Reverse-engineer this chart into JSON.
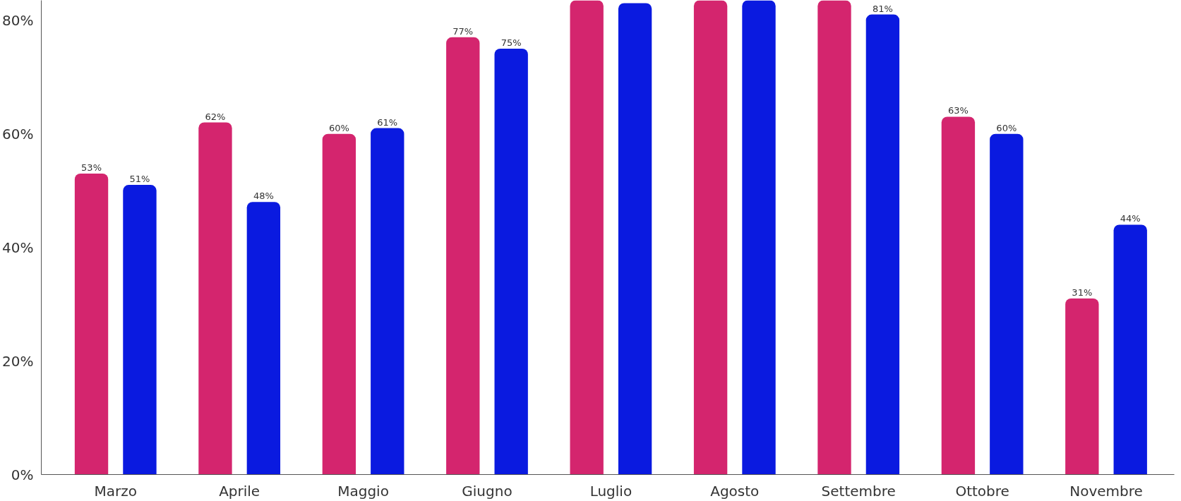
{
  "chart_data": {
    "type": "bar",
    "categories": [
      "Marzo",
      "Aprile",
      "Maggio",
      "Giugno",
      "Luglio",
      "Agosto",
      "Settembre",
      "Ottobre",
      "Novembre"
    ],
    "series": [
      {
        "color": "#d4256e",
        "values": [
          53,
          62,
          60,
          77,
          83.5,
          83.5,
          83.5,
          63,
          31
        ],
        "value_labels": [
          "53%",
          "62%",
          "60%",
          "77%",
          null,
          null,
          null,
          "63%",
          "31%"
        ]
      },
      {
        "color": "#0a1ae0",
        "values": [
          51,
          48,
          61,
          75,
          83,
          83.5,
          81,
          60,
          44
        ],
        "value_labels": [
          "51%",
          "48%",
          "61%",
          "75%",
          null,
          null,
          "81%",
          "60%",
          "44%"
        ]
      }
    ],
    "ylim": [
      0,
      83.5
    ],
    "yticks": [
      {
        "value": 0,
        "label": "0%"
      },
      {
        "value": 20,
        "label": "20%"
      },
      {
        "value": 40,
        "label": "40%"
      },
      {
        "value": 60,
        "label": "60%"
      },
      {
        "value": 80,
        "label": "80%"
      }
    ],
    "grid": false
  }
}
